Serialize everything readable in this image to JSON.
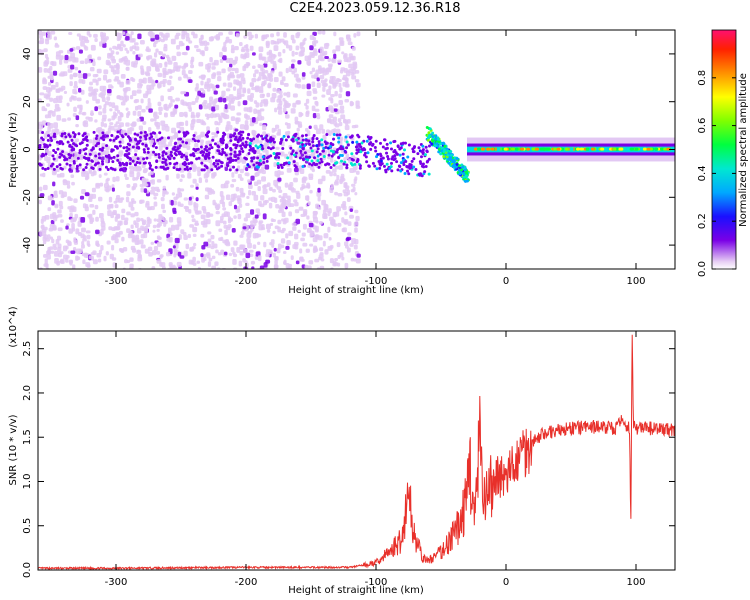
{
  "title": "C2E4.2023.059.12.36.R18",
  "chart_data": [
    {
      "type": "heatmap",
      "xlabel": "Height of straight line (km)",
      "ylabel": "Frequency (Hz)",
      "xlim": [
        -360,
        130
      ],
      "ylim": [
        -50,
        50
      ],
      "xticks": [
        -300,
        -200,
        -100,
        0,
        100
      ],
      "yticks": [
        -40,
        -20,
        0,
        20,
        40
      ],
      "colorbar": {
        "label": "Normalized spectral amplitude",
        "range": [
          0.0,
          1.0
        ],
        "ticks": [
          "0.0",
          "0.2",
          "0.4",
          "0.6",
          "0.8"
        ],
        "colormap": "rainbow"
      },
      "features": [
        {
          "height_km": [
            -360,
            -115
          ],
          "description": "broad scattered low-amplitude power",
          "amplitude": 0.15
        },
        {
          "height_km": [
            -200,
            -60
          ],
          "frequency_hz": [
            -10,
            5
          ],
          "amplitude": 0.45
        },
        {
          "height_km": [
            -60,
            -30
          ],
          "frequency_hz": [
            -14,
            8
          ],
          "amplitude": 0.55
        },
        {
          "height_km": [
            -30,
            130
          ],
          "frequency_hz": [
            -2,
            2
          ],
          "amplitude": 0.9
        }
      ]
    },
    {
      "type": "line",
      "xlabel": "Height of straight line (km)",
      "ylabel": "SNR (10 * v/v)",
      "scale_note": "(x10^4)",
      "xlim": [
        -360,
        130
      ],
      "ylim": [
        0,
        2.7
      ],
      "xticks": [
        -300,
        -200,
        -100,
        0,
        100
      ],
      "yticks": [
        "0.0",
        "0.5",
        "1.0",
        "1.5",
        "2.0",
        "2.5"
      ],
      "series": [
        {
          "color": "#e8302a",
          "x": [
            -360,
            -300,
            -200,
            -120,
            -100,
            -90,
            -80,
            -75,
            -72,
            -70,
            -65,
            -60,
            -55,
            -50,
            -45,
            -40,
            -35,
            -30,
            -28,
            -25,
            -22,
            -20,
            -18,
            -15,
            -12,
            -10,
            -5,
            0,
            5,
            10,
            20,
            30,
            50,
            70,
            85,
            90,
            95,
            96,
            97,
            98,
            100,
            110,
            130
          ],
          "y": [
            0.02,
            0.02,
            0.03,
            0.03,
            0.08,
            0.2,
            0.35,
            0.9,
            0.5,
            0.4,
            0.15,
            0.1,
            0.15,
            0.2,
            0.3,
            0.4,
            0.55,
            0.8,
            1.3,
            0.6,
            0.9,
            1.6,
            0.7,
            0.8,
            0.9,
            1.0,
            1.1,
            1.0,
            1.15,
            1.3,
            1.45,
            1.55,
            1.6,
            1.62,
            1.6,
            1.7,
            1.6,
            0.5,
            2.65,
            1.6,
            1.6,
            1.6,
            1.58
          ]
        }
      ]
    }
  ]
}
